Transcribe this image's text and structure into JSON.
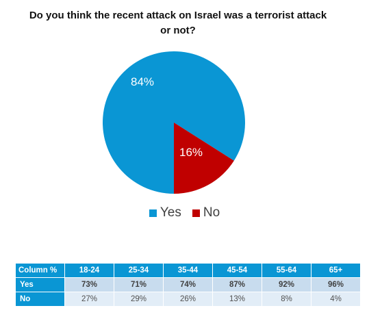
{
  "chart_data": {
    "type": "pie",
    "title": "Do you think the recent attack on Israel was a terrorist attack or not?",
    "categories": [
      "Yes",
      "No"
    ],
    "values": [
      84,
      16
    ],
    "labels": [
      "84%",
      "16%"
    ],
    "colors": [
      "#0a96d4",
      "#c00000"
    ],
    "legend": "bottom"
  },
  "table": {
    "header": [
      "Column %",
      "18-24",
      "25-34",
      "35-44",
      "45-54",
      "55-64",
      "65+"
    ],
    "rows": [
      {
        "label": "Yes",
        "values": [
          "73%",
          "71%",
          "74%",
          "87%",
          "92%",
          "96%"
        ]
      },
      {
        "label": "No",
        "values": [
          "27%",
          "29%",
          "26%",
          "13%",
          "8%",
          "4%"
        ]
      }
    ]
  }
}
